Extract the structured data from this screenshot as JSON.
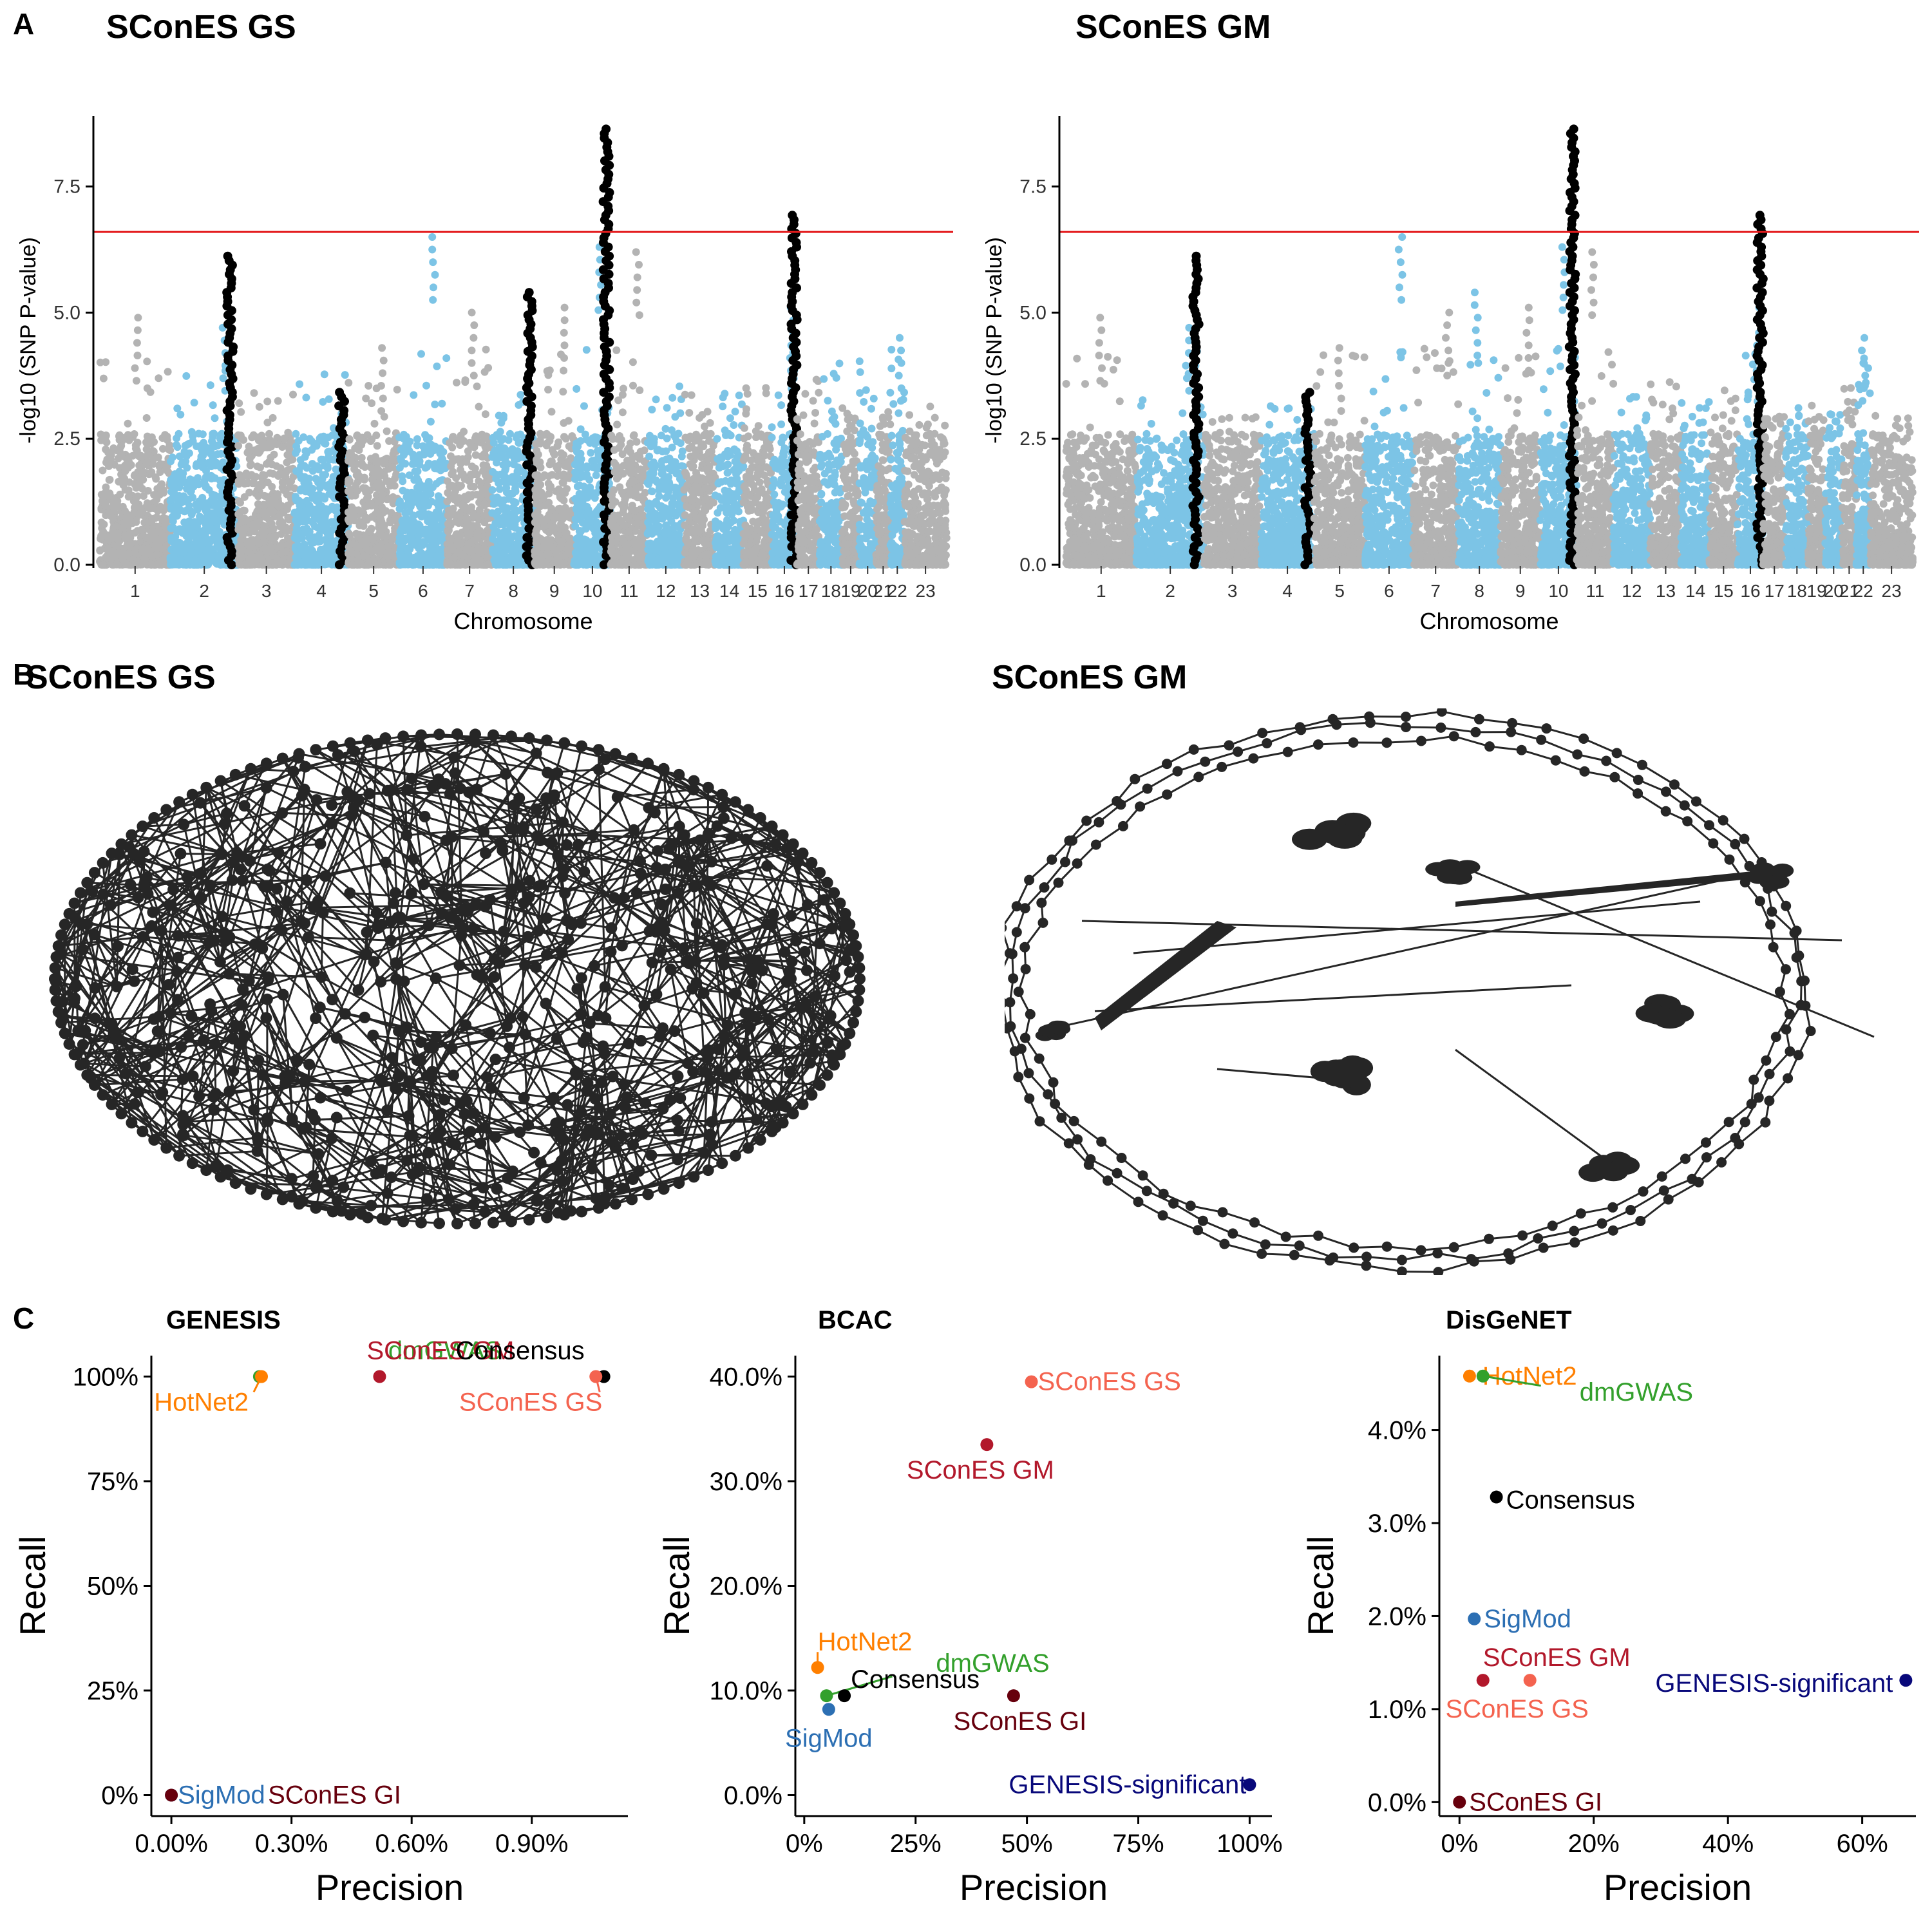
{
  "panels": {
    "A": {
      "letter": "A",
      "manhattan": [
        {
          "title": "SConES GS",
          "chart_data": {
            "type": "scatter",
            "xlabel": "Chromosome",
            "ylabel": "-log10 (SNP P-value)",
            "ylim": [
              0,
              8.9
            ],
            "yticks": [
              0.0,
              2.5,
              5.0,
              7.5
            ],
            "ytick_labels": [
              "0.0",
              "2.5",
              "5.0",
              "7.5"
            ],
            "threshold": 6.6,
            "colors": {
              "odd": "#b3b3b3",
              "even": "#7cc4e6",
              "selected": "#000000",
              "threshold": "#e41a1c"
            },
            "chromosomes": [
              "1",
              "2",
              "3",
              "4",
              "5",
              "6",
              "7",
              "8",
              "9",
              "10",
              "11",
              "12",
              "13",
              "14",
              "15",
              "16",
              "17",
              "18",
              "19",
              "20",
              "21",
              "22",
              "23"
            ],
            "selected_loci": [
              {
                "chromosome": "2",
                "max_y": 6.2
              },
              {
                "chromosome": "4",
                "max_y": 3.5
              },
              {
                "chromosome": "8",
                "max_y": 5.4
              },
              {
                "chromosome": "10",
                "max_y": 8.7
              },
              {
                "chromosome": "16",
                "max_y": 7.0
              }
            ],
            "peaks": [
              {
                "chromosome": "1",
                "max_y": 4.9
              },
              {
                "chromosome": "2",
                "max_y": 4.7
              },
              {
                "chromosome": "5",
                "max_y": 4.3
              },
              {
                "chromosome": "6",
                "max_y": 6.5
              },
              {
                "chromosome": "7",
                "max_y": 5.0
              },
              {
                "chromosome": "9",
                "max_y": 5.1
              },
              {
                "chromosome": "10",
                "max_y": 6.3
              },
              {
                "chromosome": "11",
                "max_y": 6.2
              },
              {
                "chromosome": "16",
                "max_y": 5.1
              },
              {
                "chromosome": "22",
                "max_y": 4.5
              }
            ]
          }
        },
        {
          "title": "SConES GM",
          "chart_data": {
            "type": "scatter",
            "xlabel": "Chromosome",
            "ylabel": "-log10 (SNP P-value)",
            "ylim": [
              0,
              8.9
            ],
            "yticks": [
              0.0,
              2.5,
              5.0,
              7.5
            ],
            "ytick_labels": [
              "0.0",
              "2.5",
              "5.0",
              "7.5"
            ],
            "threshold": 6.6,
            "colors": {
              "odd": "#b3b3b3",
              "even": "#7cc4e6",
              "selected": "#000000",
              "threshold": "#e41a1c"
            },
            "chromosomes": [
              "1",
              "2",
              "3",
              "4",
              "5",
              "6",
              "7",
              "8",
              "9",
              "10",
              "11",
              "12",
              "13",
              "14",
              "15",
              "16",
              "17",
              "18",
              "19",
              "20",
              "21",
              "22",
              "23"
            ],
            "selected_loci": [
              {
                "chromosome": "2",
                "max_y": 6.2
              },
              {
                "chromosome": "4",
                "max_y": 3.5
              },
              {
                "chromosome": "10",
                "max_y": 8.7
              },
              {
                "chromosome": "16",
                "max_y": 7.0
              }
            ],
            "peaks": [
              {
                "chromosome": "1",
                "max_y": 4.9
              },
              {
                "chromosome": "2",
                "max_y": 4.7
              },
              {
                "chromosome": "5",
                "max_y": 4.3
              },
              {
                "chromosome": "6",
                "max_y": 6.5
              },
              {
                "chromosome": "7",
                "max_y": 5.0
              },
              {
                "chromosome": "8",
                "max_y": 5.4
              },
              {
                "chromosome": "9",
                "max_y": 5.1
              },
              {
                "chromosome": "10",
                "max_y": 6.3
              },
              {
                "chromosome": "11",
                "max_y": 6.2
              },
              {
                "chromosome": "16",
                "max_y": 5.1
              },
              {
                "chromosome": "22",
                "max_y": 4.5
              }
            ]
          }
        }
      ]
    },
    "B": {
      "letter": "B",
      "networks": [
        {
          "title": "SConES GS",
          "layout": "dense-ellipse",
          "node_color": "#262626"
        },
        {
          "title": "SConES GM",
          "layout": "rings-with-clusters",
          "node_color": "#262626"
        }
      ]
    },
    "C": {
      "letter": "C",
      "chart_data": [
        {
          "type": "scatter",
          "title": "GENESIS",
          "xlabel": "Precision",
          "ylabel": "Recall",
          "xlim": [
            -0.0005,
            0.0114
          ],
          "ylim": [
            -0.05,
            1.05
          ],
          "xticks": [
            0,
            0.003,
            0.006,
            0.009
          ],
          "xtick_labels": [
            "0.00%",
            "0.30%",
            "0.60%",
            "0.90%"
          ],
          "yticks": [
            0,
            0.25,
            0.5,
            0.75,
            1.0
          ],
          "ytick_labels": [
            "0%",
            "25%",
            "50%",
            "75%",
            "100%"
          ],
          "points": [
            {
              "label": "dmGWAS",
              "x": 0.0022,
              "y": 1.0,
              "color": "#33a02c"
            },
            {
              "label": "HotNet2",
              "x": 0.00225,
              "y": 1.0,
              "color": "#ff7f00"
            },
            {
              "label": "SConES GM",
              "x": 0.0052,
              "y": 1.0,
              "color": "#b2182b"
            },
            {
              "label": "Consensus",
              "x": 0.0108,
              "y": 1.0,
              "color": "#000000"
            },
            {
              "label": "SConES GS",
              "x": 0.0106,
              "y": 1.0,
              "color": "#f4634f"
            },
            {
              "label": "SigMod",
              "x": 0.0,
              "y": 0.0,
              "color": "#2c6fb3"
            },
            {
              "label": "SConES GI",
              "x": 0.0,
              "y": 0.0,
              "color": "#67000d"
            }
          ]
        },
        {
          "type": "scatter",
          "title": "BCAC",
          "xlabel": "Precision",
          "ylabel": "Recall",
          "xlim": [
            -0.02,
            1.05
          ],
          "ylim": [
            -0.02,
            0.42
          ],
          "xticks": [
            0,
            0.25,
            0.5,
            0.75,
            1.0
          ],
          "xtick_labels": [
            "0%",
            "25%",
            "50%",
            "75%",
            "100%"
          ],
          "yticks": [
            0,
            0.1,
            0.2,
            0.3,
            0.4
          ],
          "ytick_labels": [
            "0.0%",
            "10.0%",
            "20.0%",
            "30.0%",
            "40.0%"
          ],
          "points": [
            {
              "label": "SConES GS",
              "x": 0.51,
              "y": 0.395,
              "color": "#f4634f"
            },
            {
              "label": "SConES GM",
              "x": 0.41,
              "y": 0.335,
              "color": "#b2182b"
            },
            {
              "label": "HotNet2",
              "x": 0.03,
              "y": 0.122,
              "color": "#ff7f00"
            },
            {
              "label": "dmGWAS",
              "x": 0.05,
              "y": 0.095,
              "color": "#33a02c"
            },
            {
              "label": "Consensus",
              "x": 0.09,
              "y": 0.095,
              "color": "#000000"
            },
            {
              "label": "SigMod",
              "x": 0.055,
              "y": 0.082,
              "color": "#2c6fb3"
            },
            {
              "label": "SConES GI",
              "x": 0.47,
              "y": 0.095,
              "color": "#67000d"
            },
            {
              "label": "GENESIS-significant",
              "x": 1.0,
              "y": 0.01,
              "color": "#08087a"
            }
          ]
        },
        {
          "type": "scatter",
          "title": "DisGeNET",
          "xlabel": "Precision",
          "ylabel": "Recall",
          "xlim": [
            -0.03,
            0.68
          ],
          "ylim": [
            -0.0015,
            0.048
          ],
          "xticks": [
            0,
            0.2,
            0.4,
            0.6
          ],
          "xtick_labels": [
            "0%",
            "20%",
            "40%",
            "60%"
          ],
          "yticks": [
            0,
            0.01,
            0.02,
            0.03,
            0.04
          ],
          "ytick_labels": [
            "0.0%",
            "1.0%",
            "2.0%",
            "3.0%",
            "4.0%"
          ],
          "points": [
            {
              "label": "HotNet2",
              "x": 0.015,
              "y": 0.0458,
              "color": "#ff7f00"
            },
            {
              "label": "dmGWAS",
              "x": 0.035,
              "y": 0.0458,
              "color": "#33a02c"
            },
            {
              "label": "Consensus",
              "x": 0.055,
              "y": 0.0328,
              "color": "#000000"
            },
            {
              "label": "SigMod",
              "x": 0.022,
              "y": 0.0197,
              "color": "#2c6fb3"
            },
            {
              "label": "SConES GM",
              "x": 0.035,
              "y": 0.0131,
              "color": "#b2182b"
            },
            {
              "label": "SConES GS",
              "x": 0.105,
              "y": 0.0131,
              "color": "#f4634f"
            },
            {
              "label": "GENESIS-significant",
              "x": 0.665,
              "y": 0.0131,
              "color": "#08087a"
            },
            {
              "label": "SConES GI",
              "x": 0.0,
              "y": 0.0,
              "color": "#67000d"
            }
          ]
        }
      ]
    }
  }
}
